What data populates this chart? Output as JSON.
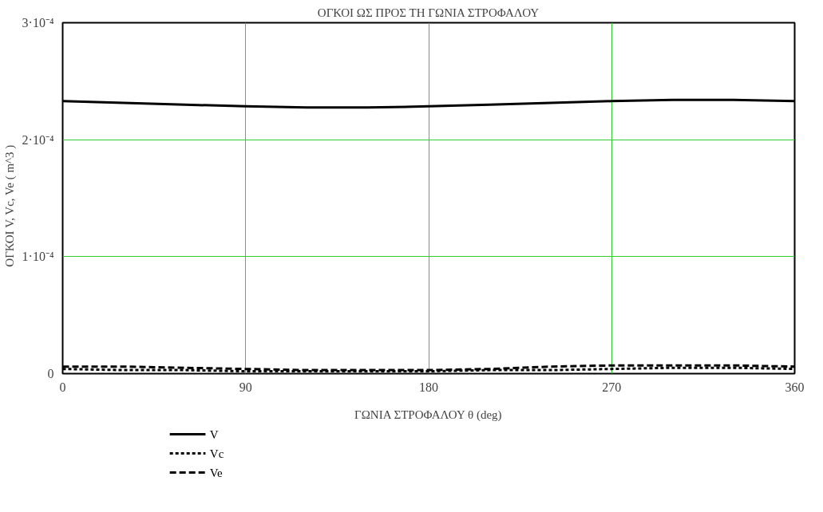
{
  "chart_data": {
    "type": "line",
    "title": "ΟΓΚΟΙ ΩΣ ΠΡΟΣ ΤΗ ΓΩΝΙΑ ΣΤΡΟΦΑΛΟΥ",
    "xlabel": "ΓΩΝΙΑ ΣΤΡΟΦΑΛΟΥ θ (deg)",
    "ylabel": "ΟΓΚΟΙ   V,  Vc,  Ve  ( m^3 )",
    "x": [
      0,
      30,
      60,
      90,
      120,
      150,
      180,
      210,
      240,
      270,
      300,
      330,
      360
    ],
    "series": [
      {
        "name": "V",
        "color": "#000000",
        "line_style": "solid",
        "values": [
          0.000233,
          0.0002315,
          0.00023,
          0.0002285,
          0.0002275,
          0.0002275,
          0.0002285,
          0.00023,
          0.0002315,
          0.000233,
          0.000234,
          0.000234,
          0.000233
        ]
      },
      {
        "name": "Vc",
        "color": "#000000",
        "line_style": "dotted",
        "values": [
          4e-06,
          3e-06,
          3e-06,
          2e-06,
          2e-06,
          2e-06,
          2e-06,
          3e-06,
          3e-06,
          4e-06,
          5e-06,
          5e-06,
          4e-06
        ]
      },
      {
        "name": "Ve",
        "color": "#000000",
        "line_style": "dashed",
        "values": [
          6e-06,
          6e-06,
          5e-06,
          4e-06,
          3e-06,
          3e-06,
          3e-06,
          4e-06,
          6e-06,
          7e-06,
          7e-06,
          7e-06,
          6e-06
        ]
      }
    ],
    "xlim": [
      0,
      360
    ],
    "xticks": [
      0,
      90,
      180,
      270,
      360
    ],
    "ylim": [
      0,
      0.0003
    ],
    "yticks": [
      {
        "value": 0,
        "label": "0"
      },
      {
        "value": 0.0001,
        "label": "1·10⁻⁴"
      },
      {
        "value": 0.0002,
        "label": "2·10⁻⁴"
      },
      {
        "value": 0.0003,
        "label": "3·10⁻⁴"
      }
    ],
    "grid": true,
    "legend": "bottom left",
    "marker": "none"
  }
}
